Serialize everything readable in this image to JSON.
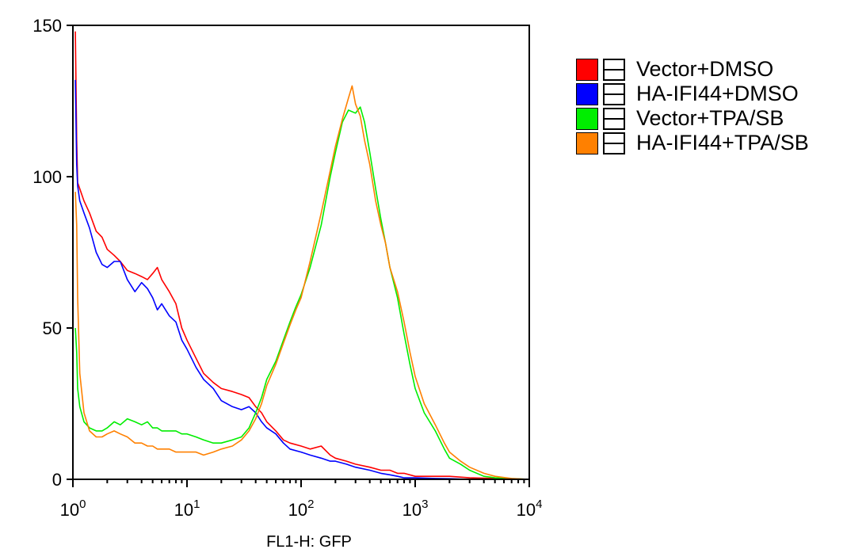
{
  "chart_data": {
    "type": "line",
    "title": "",
    "xlabel": "FL1-H: GFP",
    "ylabel": "",
    "xscale": "log",
    "xlim": [
      1,
      10000
    ],
    "ylim": [
      0,
      150
    ],
    "x_ticks": [
      {
        "base": "10",
        "exp": "0"
      },
      {
        "base": "10",
        "exp": "1"
      },
      {
        "base": "10",
        "exp": "2"
      },
      {
        "base": "10",
        "exp": "3"
      },
      {
        "base": "10",
        "exp": "4"
      }
    ],
    "y_ticks": [
      "0",
      "50",
      "100",
      "150"
    ],
    "legend_position": "right",
    "series": [
      {
        "name": "Vector+DMSO",
        "color": "#ff0000",
        "points": [
          [
            1.05,
            148
          ],
          [
            1.08,
            112
          ],
          [
            1.1,
            98
          ],
          [
            1.15,
            96
          ],
          [
            1.25,
            92
          ],
          [
            1.4,
            88
          ],
          [
            1.6,
            82
          ],
          [
            1.8,
            80
          ],
          [
            2.0,
            76
          ],
          [
            2.3,
            74
          ],
          [
            2.6,
            72
          ],
          [
            3.0,
            69
          ],
          [
            3.5,
            68
          ],
          [
            4.0,
            67
          ],
          [
            4.5,
            66
          ],
          [
            5.0,
            68
          ],
          [
            5.5,
            70
          ],
          [
            6.0,
            66
          ],
          [
            7.0,
            62
          ],
          [
            8.0,
            58
          ],
          [
            9.0,
            50
          ],
          [
            10,
            46
          ],
          [
            12,
            40
          ],
          [
            14,
            35
          ],
          [
            17,
            32
          ],
          [
            20,
            30
          ],
          [
            25,
            29
          ],
          [
            30,
            28
          ],
          [
            35,
            27
          ],
          [
            40,
            24
          ],
          [
            45,
            22
          ],
          [
            50,
            19
          ],
          [
            60,
            16
          ],
          [
            70,
            13
          ],
          [
            80,
            12
          ],
          [
            100,
            11
          ],
          [
            120,
            10
          ],
          [
            150,
            11
          ],
          [
            180,
            8
          ],
          [
            200,
            7
          ],
          [
            250,
            6
          ],
          [
            300,
            5
          ],
          [
            400,
            4
          ],
          [
            500,
            3
          ],
          [
            600,
            3
          ],
          [
            700,
            2
          ],
          [
            800,
            2
          ],
          [
            1000,
            1
          ],
          [
            1500,
            1
          ],
          [
            2000,
            1
          ],
          [
            3000,
            0.5
          ],
          [
            5000,
            0.3
          ],
          [
            10000,
            0
          ]
        ]
      },
      {
        "name": "HA-IFI44+DMSO",
        "color": "#0000ff",
        "points": [
          [
            1.05,
            132
          ],
          [
            1.08,
            104
          ],
          [
            1.1,
            97
          ],
          [
            1.15,
            92
          ],
          [
            1.25,
            88
          ],
          [
            1.4,
            83
          ],
          [
            1.6,
            75
          ],
          [
            1.8,
            71
          ],
          [
            2.0,
            70
          ],
          [
            2.3,
            72
          ],
          [
            2.6,
            72
          ],
          [
            3.0,
            66
          ],
          [
            3.5,
            62
          ],
          [
            4.0,
            65
          ],
          [
            4.5,
            63
          ],
          [
            5.0,
            60
          ],
          [
            5.5,
            56
          ],
          [
            6.0,
            58
          ],
          [
            7.0,
            54
          ],
          [
            8.0,
            52
          ],
          [
            9.0,
            46
          ],
          [
            10,
            43
          ],
          [
            12,
            37
          ],
          [
            14,
            33
          ],
          [
            17,
            30
          ],
          [
            20,
            26
          ],
          [
            25,
            24
          ],
          [
            30,
            23
          ],
          [
            35,
            24
          ],
          [
            40,
            22
          ],
          [
            45,
            19
          ],
          [
            50,
            17
          ],
          [
            60,
            15
          ],
          [
            70,
            12
          ],
          [
            80,
            10
          ],
          [
            100,
            9
          ],
          [
            120,
            8
          ],
          [
            150,
            7
          ],
          [
            180,
            6
          ],
          [
            200,
            6
          ],
          [
            250,
            5
          ],
          [
            300,
            4
          ],
          [
            400,
            3
          ],
          [
            500,
            2
          ],
          [
            600,
            1.5
          ],
          [
            700,
            1
          ],
          [
            800,
            0.5
          ],
          [
            1000,
            0.5
          ],
          [
            1500,
            0.3
          ],
          [
            2000,
            0.2
          ],
          [
            3000,
            0
          ],
          [
            5000,
            0
          ],
          [
            10000,
            0
          ]
        ]
      },
      {
        "name": "Vector+TPA/SB",
        "color": "#00ee00",
        "points": [
          [
            1.05,
            50
          ],
          [
            1.08,
            42
          ],
          [
            1.1,
            30
          ],
          [
            1.15,
            24
          ],
          [
            1.25,
            19
          ],
          [
            1.4,
            17
          ],
          [
            1.6,
            16
          ],
          [
            1.8,
            16
          ],
          [
            2.0,
            17
          ],
          [
            2.3,
            19
          ],
          [
            2.6,
            18
          ],
          [
            3.0,
            20
          ],
          [
            3.5,
            19
          ],
          [
            4.0,
            18
          ],
          [
            4.5,
            19
          ],
          [
            5.0,
            17
          ],
          [
            5.5,
            17
          ],
          [
            6.0,
            16
          ],
          [
            7.0,
            16
          ],
          [
            8.0,
            16
          ],
          [
            9.0,
            15
          ],
          [
            10,
            15
          ],
          [
            12,
            14
          ],
          [
            14,
            13
          ],
          [
            17,
            12
          ],
          [
            20,
            12
          ],
          [
            25,
            13
          ],
          [
            30,
            14
          ],
          [
            35,
            17
          ],
          [
            40,
            22
          ],
          [
            45,
            27
          ],
          [
            50,
            33
          ],
          [
            60,
            39
          ],
          [
            70,
            46
          ],
          [
            80,
            52
          ],
          [
            90,
            57
          ],
          [
            100,
            61
          ],
          [
            120,
            70
          ],
          [
            150,
            84
          ],
          [
            180,
            100
          ],
          [
            200,
            108
          ],
          [
            230,
            118
          ],
          [
            260,
            122
          ],
          [
            300,
            121
          ],
          [
            330,
            123
          ],
          [
            360,
            118
          ],
          [
            400,
            108
          ],
          [
            450,
            96
          ],
          [
            500,
            86
          ],
          [
            550,
            78
          ],
          [
            600,
            70
          ],
          [
            700,
            60
          ],
          [
            800,
            48
          ],
          [
            900,
            38
          ],
          [
            1000,
            30
          ],
          [
            1200,
            22
          ],
          [
            1500,
            16
          ],
          [
            1800,
            10
          ],
          [
            2000,
            7
          ],
          [
            2500,
            5
          ],
          [
            3000,
            3
          ],
          [
            4000,
            1
          ],
          [
            5000,
            0.5
          ],
          [
            7000,
            0.2
          ],
          [
            10000,
            0
          ]
        ]
      },
      {
        "name": "HA-IFI44+TPA/SB",
        "color": "#ff8000",
        "points": [
          [
            1.05,
            95
          ],
          [
            1.08,
            84
          ],
          [
            1.1,
            60
          ],
          [
            1.15,
            35
          ],
          [
            1.25,
            22
          ],
          [
            1.4,
            16
          ],
          [
            1.6,
            14
          ],
          [
            1.8,
            14
          ],
          [
            2.0,
            15
          ],
          [
            2.3,
            16
          ],
          [
            2.6,
            15
          ],
          [
            3.0,
            14
          ],
          [
            3.5,
            12
          ],
          [
            4.0,
            12
          ],
          [
            4.5,
            11
          ],
          [
            5.0,
            11
          ],
          [
            5.5,
            10
          ],
          [
            6.0,
            10
          ],
          [
            7.0,
            10
          ],
          [
            8.0,
            9
          ],
          [
            9.0,
            9
          ],
          [
            10,
            9
          ],
          [
            12,
            9
          ],
          [
            14,
            8
          ],
          [
            17,
            9
          ],
          [
            20,
            10
          ],
          [
            25,
            11
          ],
          [
            30,
            13
          ],
          [
            35,
            16
          ],
          [
            40,
            20
          ],
          [
            45,
            25
          ],
          [
            50,
            31
          ],
          [
            60,
            38
          ],
          [
            70,
            45
          ],
          [
            80,
            51
          ],
          [
            90,
            56
          ],
          [
            100,
            60
          ],
          [
            120,
            72
          ],
          [
            150,
            88
          ],
          [
            180,
            102
          ],
          [
            200,
            110
          ],
          [
            230,
            119
          ],
          [
            260,
            126
          ],
          [
            280,
            130
          ],
          [
            300,
            124
          ],
          [
            330,
            120
          ],
          [
            360,
            112
          ],
          [
            400,
            104
          ],
          [
            450,
            92
          ],
          [
            500,
            84
          ],
          [
            550,
            78
          ],
          [
            600,
            70
          ],
          [
            700,
            62
          ],
          [
            800,
            52
          ],
          [
            900,
            42
          ],
          [
            1000,
            34
          ],
          [
            1200,
            25
          ],
          [
            1500,
            18
          ],
          [
            1800,
            12
          ],
          [
            2000,
            9
          ],
          [
            2500,
            6
          ],
          [
            3000,
            4
          ],
          [
            4000,
            2
          ],
          [
            5000,
            1
          ],
          [
            7000,
            0.3
          ],
          [
            10000,
            0
          ]
        ]
      }
    ]
  }
}
